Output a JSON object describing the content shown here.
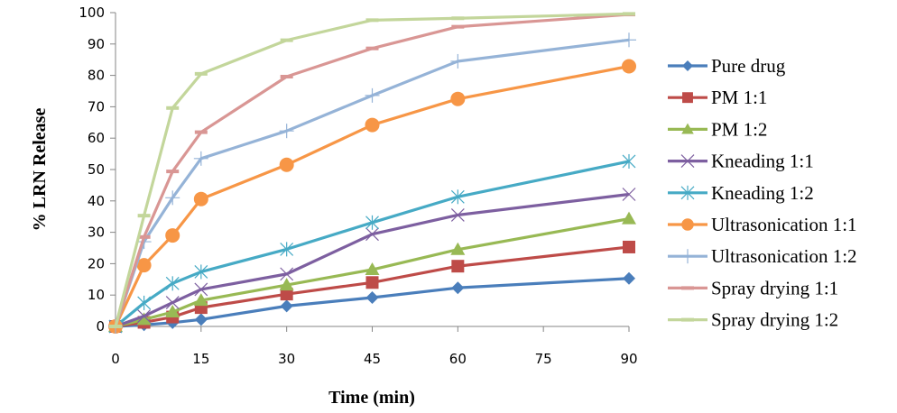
{
  "chart_data": {
    "type": "line",
    "title": "",
    "xlabel": "Time (min)",
    "ylabel": "% LRN Release",
    "xlim": [
      0,
      90
    ],
    "ylim": [
      0,
      100
    ],
    "xticks": [
      0,
      15,
      30,
      45,
      60,
      75,
      90
    ],
    "yticks": [
      0,
      10,
      20,
      30,
      40,
      50,
      60,
      70,
      80,
      90,
      100
    ],
    "grid": false,
    "legend_position": "right",
    "x": [
      0,
      5,
      10,
      15,
      30,
      45,
      60,
      90
    ],
    "series": [
      {
        "name": "Pure drug",
        "color": "#4a7ebb",
        "marker": "diamond",
        "values": [
          0,
          0.5,
          1.2,
          2.2,
          6.5,
          9.2,
          12.3,
          15.3
        ]
      },
      {
        "name": "PM 1:1",
        "color": "#be4b48",
        "marker": "square",
        "values": [
          0,
          1.3,
          3.0,
          6.0,
          10.3,
          14.0,
          19.2,
          25.3
        ]
      },
      {
        "name": "PM 1:2",
        "color": "#98b954",
        "marker": "triangle",
        "values": [
          0,
          2.2,
          4.6,
          8.3,
          13.2,
          18.1,
          24.5,
          34.3
        ]
      },
      {
        "name": "Kneading 1:1",
        "color": "#7d5fa0",
        "marker": "x",
        "values": [
          0,
          3.3,
          7.6,
          11.8,
          16.7,
          29.4,
          35.5,
          42.1
        ]
      },
      {
        "name": "Kneading 1:2",
        "color": "#46aac5",
        "marker": "star",
        "values": [
          0,
          7.5,
          13.7,
          17.4,
          24.6,
          33.1,
          41.3,
          52.6
        ]
      },
      {
        "name": "Ultrasonication 1:1",
        "color": "#f79646",
        "marker": "circle",
        "values": [
          0,
          19.5,
          29.0,
          40.6,
          51.5,
          64.2,
          72.5,
          82.9
        ]
      },
      {
        "name": "Ultrasonication 1:2",
        "color": "#95b3d7",
        "marker": "plus",
        "values": [
          0,
          27.0,
          41.0,
          53.5,
          62.3,
          73.6,
          84.5,
          91.3
        ]
      },
      {
        "name": "Spray drying 1:1",
        "color": "#d99694",
        "marker": "dash",
        "values": [
          0,
          28.5,
          49.4,
          61.9,
          79.6,
          88.6,
          95.5,
          99.4
        ]
      },
      {
        "name": "Spray drying 1:2",
        "color": "#c3d69b",
        "marker": "dash",
        "values": [
          0,
          35.3,
          69.6,
          80.5,
          91.2,
          97.6,
          98.2,
          99.6
        ]
      }
    ]
  }
}
